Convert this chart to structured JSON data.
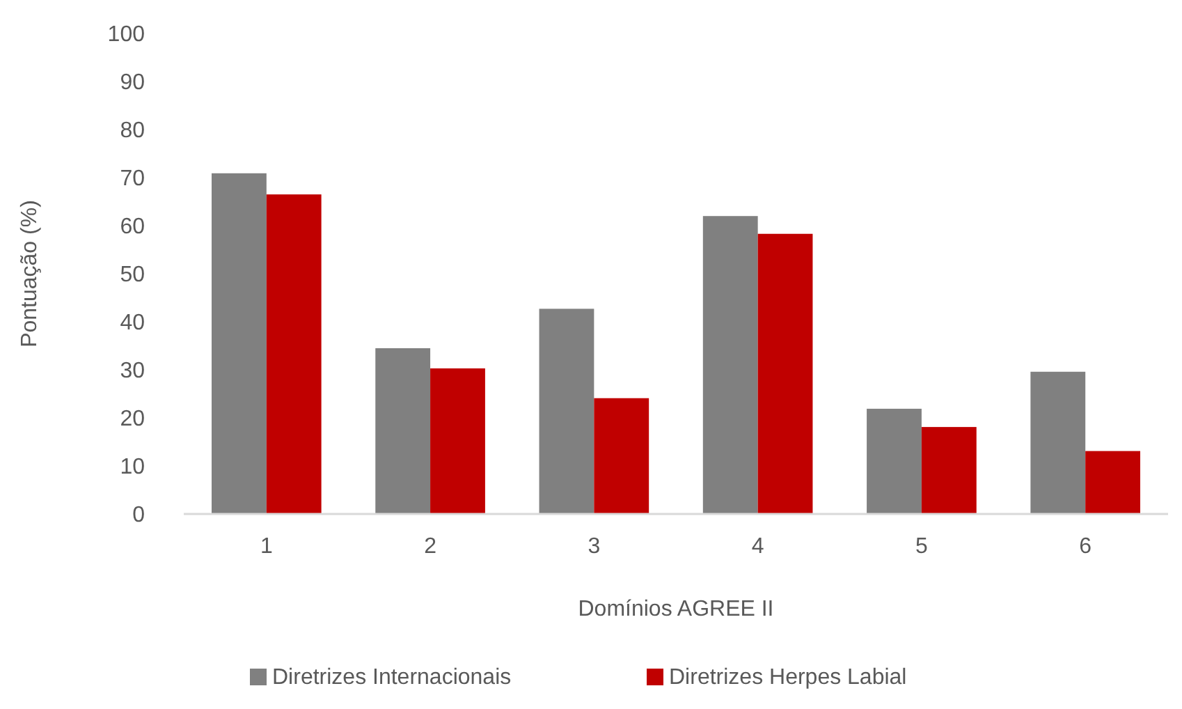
{
  "chart_data": {
    "type": "bar",
    "xlabel": "Domínios AGREE II",
    "ylabel": "Pontuação (%)",
    "categories": [
      "1",
      "2",
      "3",
      "4",
      "5",
      "6"
    ],
    "series": [
      {
        "name": "Diretrizes Internacionais",
        "color": "#808080",
        "values": [
          70.9,
          34.5,
          42.7,
          62,
          21.9,
          29.6
        ]
      },
      {
        "name": "Diretrizes Herpes Labial",
        "color": "#c00000",
        "values": [
          66.5,
          30.3,
          24.1,
          58.3,
          18.1,
          13.1
        ]
      }
    ],
    "ylim": [
      0,
      100
    ],
    "yticks": [
      0,
      10,
      20,
      30,
      40,
      50,
      60,
      70,
      80,
      90,
      100
    ],
    "grid": false,
    "legend": "bottom"
  }
}
